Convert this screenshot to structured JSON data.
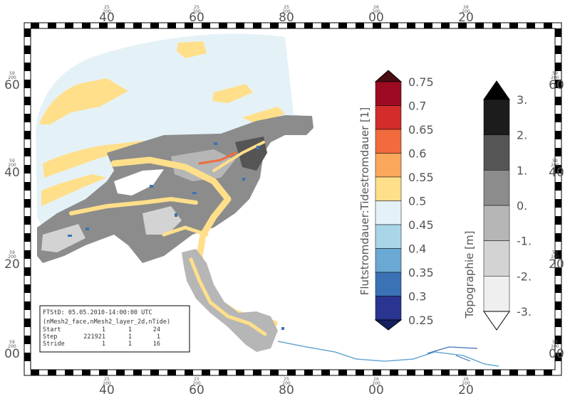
{
  "map": {
    "top_ticks": [
      {
        "small1": "25",
        "small2": "200",
        "big": "40"
      },
      {
        "small1": "25",
        "small2": "200",
        "big": "60"
      },
      {
        "small1": "25",
        "small2": "200",
        "big": "80"
      },
      {
        "small1": "26",
        "small2": "200",
        "big": "00"
      },
      {
        "small1": "26",
        "small2": "200",
        "big": "20"
      }
    ],
    "bottom_ticks": [
      {
        "small1": "25",
        "small2": "200",
        "big": "40"
      },
      {
        "small1": "25",
        "small2": "200",
        "big": "60"
      },
      {
        "small1": "25",
        "small2": "200",
        "big": "80"
      },
      {
        "small1": "26",
        "small2": "200",
        "big": "00"
      },
      {
        "small1": "26",
        "small2": "200",
        "big": "20"
      }
    ],
    "left_ticks": [
      {
        "small1": "59",
        "small2": "200",
        "big": "60"
      },
      {
        "small1": "59",
        "small2": "200",
        "big": "40"
      },
      {
        "small1": "59",
        "small2": "200",
        "big": "20"
      },
      {
        "small1": "59",
        "small2": "200",
        "big": "00"
      }
    ],
    "right_ticks": [
      {
        "small1": "59",
        "small2": "200",
        "big": "60"
      },
      {
        "small1": "59",
        "small2": "200",
        "big": "40"
      },
      {
        "small1": "59",
        "small2": "200",
        "big": "20"
      },
      {
        "small1": "59",
        "small2": "200",
        "big": "00"
      }
    ]
  },
  "colorbar_ratio": {
    "title": "Flutstromdauer:Tidestromdauer [1]",
    "labels": [
      "0.75",
      "0.7",
      "0.65",
      "0.6",
      "0.55",
      "0.5",
      "0.45",
      "0.4",
      "0.35",
      "0.3",
      "0.25"
    ],
    "colors": [
      "#4a0d12",
      "#9e0a21",
      "#d32c2a",
      "#f26b3d",
      "#fba85d",
      "#ffdf8a",
      "#e4f2f7",
      "#a8d6e7",
      "#69a9d3",
      "#3b72b5",
      "#2a3591",
      "#152060"
    ]
  },
  "colorbar_topo": {
    "title": "Topographie [m]",
    "labels": [
      "3.",
      "2.",
      "1.",
      "0.",
      "-1.",
      "-2.",
      "-3."
    ],
    "colors": [
      "#000000",
      "#1c1c1c",
      "#555555",
      "#8c8c8c",
      "#b6b6b6",
      "#d3d3d3",
      "#efefef",
      "#ffffff"
    ]
  },
  "info": {
    "line1": "FTStD: 05.05.2010-14:00:00 UTC",
    "line2": "(nMesh2_face,nMesh2_layer_2d,nTide)",
    "rows": [
      {
        "label": "Start",
        "v1": "1",
        "v2": "1",
        "v3": "24"
      },
      {
        "label": "Step",
        "v1": "221921",
        "v2": "1",
        "v3": "1"
      },
      {
        "label": "Stride",
        "v1": "1",
        "v2": "1",
        "v3": "16"
      }
    ]
  }
}
